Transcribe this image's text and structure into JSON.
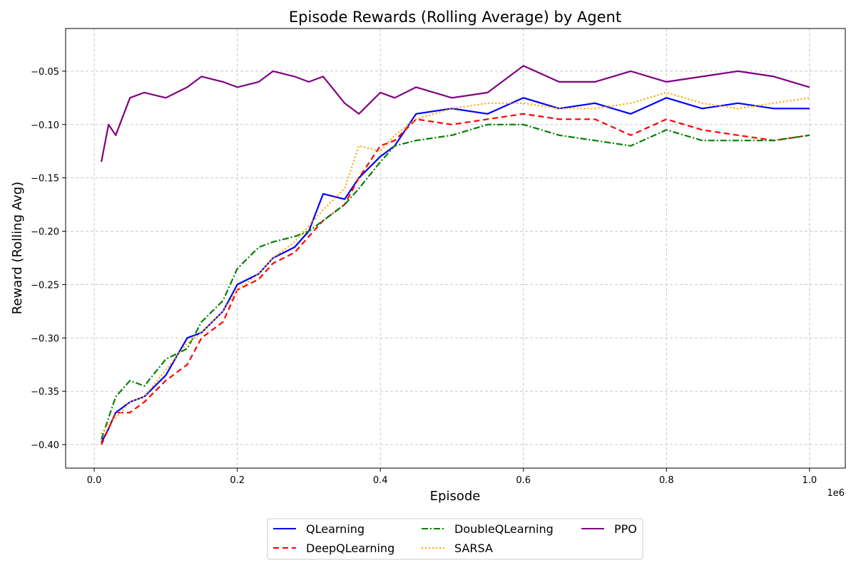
{
  "chart_data": {
    "type": "line",
    "title": "Episode Rewards (Rolling Average) by Agent",
    "xlabel": "Episode",
    "ylabel": "Reward (Rolling Avg)",
    "x_offset_text": "1e6",
    "xlim": [
      -0.04,
      1.05
    ],
    "ylim": [
      -0.422,
      -0.01
    ],
    "x_ticks": [
      0.0,
      0.2,
      0.4,
      0.6,
      0.8,
      1.0
    ],
    "x_tick_labels": [
      "0.0",
      "0.2",
      "0.4",
      "0.6",
      "0.8",
      "1.0"
    ],
    "y_ticks": [
      -0.4,
      -0.35,
      -0.3,
      -0.25,
      -0.2,
      -0.15,
      -0.1,
      -0.05
    ],
    "y_tick_labels": [
      "−0.40",
      "−0.35",
      "−0.30",
      "−0.25",
      "−0.20",
      "−0.15",
      "−0.10",
      "−0.05"
    ],
    "grid": true,
    "legend_position": "bottom-center",
    "x": [
      0.01,
      0.02,
      0.03,
      0.05,
      0.07,
      0.1,
      0.13,
      0.15,
      0.18,
      0.2,
      0.23,
      0.25,
      0.28,
      0.3,
      0.32,
      0.35,
      0.37,
      0.4,
      0.42,
      0.45,
      0.5,
      0.55,
      0.6,
      0.65,
      0.7,
      0.75,
      0.8,
      0.85,
      0.9,
      0.95,
      1.0
    ],
    "series": [
      {
        "name": "QLearning",
        "color": "#0000ff",
        "dash": "solid",
        "values": [
          -0.398,
          -0.385,
          -0.37,
          -0.36,
          -0.355,
          -0.335,
          -0.3,
          -0.295,
          -0.275,
          -0.25,
          -0.24,
          -0.225,
          -0.215,
          -0.2,
          -0.165,
          -0.17,
          -0.15,
          -0.13,
          -0.12,
          -0.09,
          -0.085,
          -0.09,
          -0.075,
          -0.085,
          -0.08,
          -0.09,
          -0.075,
          -0.085,
          -0.08,
          -0.085,
          -0.085
        ]
      },
      {
        "name": "DeepQLearning",
        "color": "#ff0000",
        "dash": "8,5",
        "values": [
          -0.4,
          -0.385,
          -0.37,
          -0.37,
          -0.36,
          -0.34,
          -0.325,
          -0.3,
          -0.285,
          -0.255,
          -0.245,
          -0.23,
          -0.22,
          -0.205,
          -0.19,
          -0.175,
          -0.15,
          -0.12,
          -0.115,
          -0.095,
          -0.1,
          -0.095,
          -0.09,
          -0.095,
          -0.095,
          -0.11,
          -0.095,
          -0.105,
          -0.11,
          -0.115,
          -0.11
        ]
      },
      {
        "name": "DoubleQLearning",
        "color": "#008000",
        "dash": "9,3,2,3",
        "values": [
          -0.395,
          -0.375,
          -0.355,
          -0.34,
          -0.345,
          -0.32,
          -0.31,
          -0.285,
          -0.265,
          -0.235,
          -0.215,
          -0.21,
          -0.205,
          -0.2,
          -0.19,
          -0.175,
          -0.16,
          -0.135,
          -0.12,
          -0.115,
          -0.11,
          -0.1,
          -0.1,
          -0.11,
          -0.115,
          -0.12,
          -0.105,
          -0.115,
          -0.115,
          -0.115,
          -0.11
        ]
      },
      {
        "name": "SARSA",
        "color": "#ffa500",
        "dash": "2,3",
        "values": [
          -0.39,
          -0.38,
          -0.375,
          -0.36,
          -0.355,
          -0.33,
          -0.305,
          -0.295,
          -0.275,
          -0.255,
          -0.24,
          -0.225,
          -0.21,
          -0.195,
          -0.18,
          -0.16,
          -0.12,
          -0.125,
          -0.11,
          -0.095,
          -0.085,
          -0.08,
          -0.08,
          -0.085,
          -0.085,
          -0.08,
          -0.07,
          -0.08,
          -0.085,
          -0.08,
          -0.075
        ]
      },
      {
        "name": "PPO",
        "color": "#800080",
        "dash": "solid",
        "values": [
          -0.135,
          -0.1,
          -0.11,
          -0.075,
          -0.07,
          -0.075,
          -0.065,
          -0.055,
          -0.06,
          -0.065,
          -0.06,
          -0.05,
          -0.055,
          -0.06,
          -0.055,
          -0.08,
          -0.09,
          -0.07,
          -0.075,
          -0.065,
          -0.075,
          -0.07,
          -0.045,
          -0.06,
          -0.06,
          -0.05,
          -0.06,
          -0.055,
          -0.05,
          -0.055,
          -0.065
        ]
      }
    ]
  }
}
